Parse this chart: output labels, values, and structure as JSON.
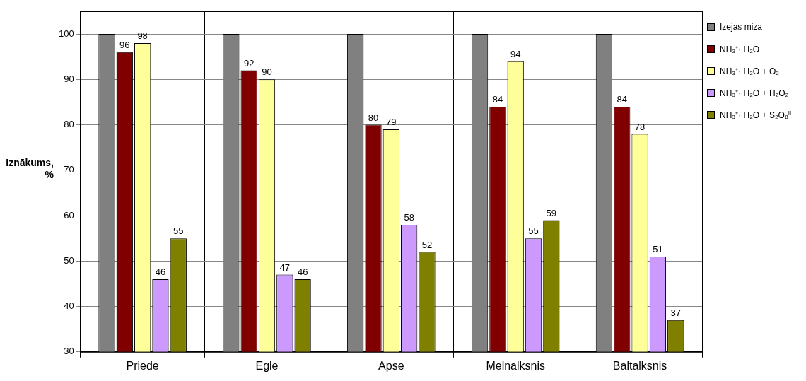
{
  "chart_data": {
    "type": "bar",
    "ylabel": "Iznākums, %",
    "categories": [
      "Priede",
      "Egle",
      "Apse",
      "Melnalksnis",
      "Baltalksnis"
    ],
    "series": [
      {
        "name": "Izejas miza",
        "color": "#808080",
        "values": [
          100,
          100,
          100,
          100,
          100
        ]
      },
      {
        "name": "NH₃⁺· H₂O",
        "color": "#800000",
        "values": [
          96,
          92,
          80,
          84,
          84
        ],
        "value_labels": [
          "96",
          "92",
          "80",
          "84",
          "84"
        ]
      },
      {
        "name": "NH₃⁺· H₂O + O₂",
        "color": "#ffff99",
        "values": [
          98,
          90,
          79,
          94,
          78
        ],
        "value_labels": [
          "98",
          "90",
          "79",
          "94",
          "78"
        ]
      },
      {
        "name": "NH₃⁺· H₂O + H₂O₂",
        "color": "#cc99ff",
        "values": [
          46,
          47,
          58,
          55,
          51
        ],
        "value_labels": [
          "46",
          "47",
          "58",
          "55",
          "51"
        ]
      },
      {
        "name": "NH₃⁺· H₂O + S₂O₈$^{II}$",
        "color": "#808000",
        "values": [
          55,
          46,
          52,
          59,
          37
        ],
        "value_labels": [
          "55",
          "46",
          "52",
          "59",
          "37"
        ]
      }
    ],
    "ylim": [
      30,
      105
    ],
    "yticks": [
      30,
      40,
      50,
      60,
      70,
      80,
      90,
      100
    ],
    "grid": "y",
    "legend": "right"
  }
}
